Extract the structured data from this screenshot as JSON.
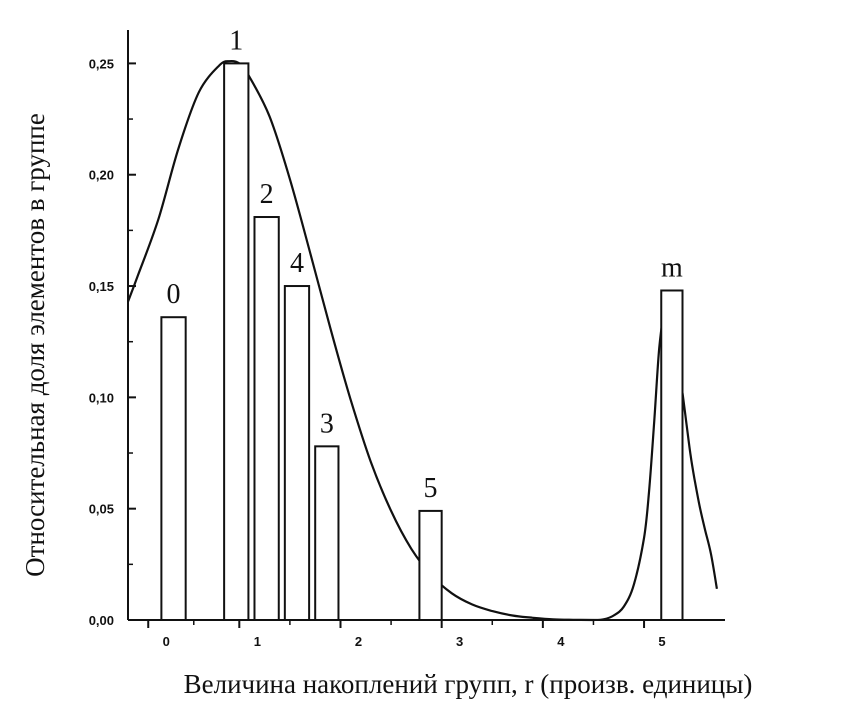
{
  "chart_data": {
    "type": "bar",
    "xlabel": "Величина накоплений групп, r (произв. единицы)",
    "ylabel": "Относительная доля элементов в группе",
    "xlim": [
      -0.1,
      5.8
    ],
    "ylim": [
      0,
      0.265
    ],
    "x_ticks": [
      {
        "value": 0.1,
        "label": "0"
      },
      {
        "value": 1.0,
        "label": "1"
      },
      {
        "value": 2.0,
        "label": "2"
      },
      {
        "value": 3.0,
        "label": "3"
      },
      {
        "value": 4.0,
        "label": "4"
      },
      {
        "value": 5.0,
        "label": "5"
      }
    ],
    "y_ticks": [
      {
        "value": 0.0,
        "label": "0,00"
      },
      {
        "value": 0.05,
        "label": "0,05"
      },
      {
        "value": 0.1,
        "label": "0,10"
      },
      {
        "value": 0.15,
        "label": "0,15"
      },
      {
        "value": 0.2,
        "label": "0,20"
      },
      {
        "value": 0.25,
        "label": "0,25"
      }
    ],
    "bars": [
      {
        "label": "0",
        "x0": 0.23,
        "x1": 0.47,
        "value": 0.136
      },
      {
        "label": "1",
        "x0": 0.85,
        "x1": 1.09,
        "value": 0.25
      },
      {
        "label": "2",
        "x0": 1.15,
        "x1": 1.39,
        "value": 0.181
      },
      {
        "label": "4",
        "x0": 1.45,
        "x1": 1.69,
        "value": 0.15
      },
      {
        "label": "3",
        "x0": 1.75,
        "x1": 1.98,
        "value": 0.078
      },
      {
        "label": "5",
        "x0": 2.78,
        "x1": 3.0,
        "value": 0.049
      },
      {
        "label": "m",
        "x0": 5.17,
        "x1": 5.38,
        "value": 0.148
      }
    ],
    "curves": [
      {
        "x": [
          -0.1,
          0.0,
          0.2,
          0.4,
          0.6,
          0.8,
          0.9,
          1.0,
          1.1,
          1.3,
          1.5,
          1.7,
          1.9,
          2.1,
          2.3,
          2.5,
          2.7,
          2.9,
          3.1,
          3.3,
          3.5,
          3.7,
          3.9,
          4.1,
          4.3,
          4.5
        ],
        "y": [
          0.143,
          0.155,
          0.18,
          0.212,
          0.237,
          0.249,
          0.251,
          0.25,
          0.244,
          0.226,
          0.198,
          0.165,
          0.131,
          0.099,
          0.071,
          0.049,
          0.032,
          0.02,
          0.012,
          0.007,
          0.004,
          0.002,
          0.001,
          0.0003,
          0.0001,
          0.0
        ]
      },
      {
        "x": [
          4.5,
          4.6,
          4.7,
          4.8,
          4.9,
          5.0,
          5.05,
          5.1,
          5.15,
          5.2
        ],
        "y": [
          0.0,
          0.0003,
          0.002,
          0.006,
          0.016,
          0.037,
          0.058,
          0.089,
          0.122,
          0.14
        ]
      },
      {
        "x": [
          5.38,
          5.42,
          5.46,
          5.5,
          5.55,
          5.6,
          5.66,
          5.72
        ],
        "y": [
          0.102,
          0.088,
          0.074,
          0.063,
          0.051,
          0.041,
          0.03,
          0.014
        ]
      }
    ]
  }
}
